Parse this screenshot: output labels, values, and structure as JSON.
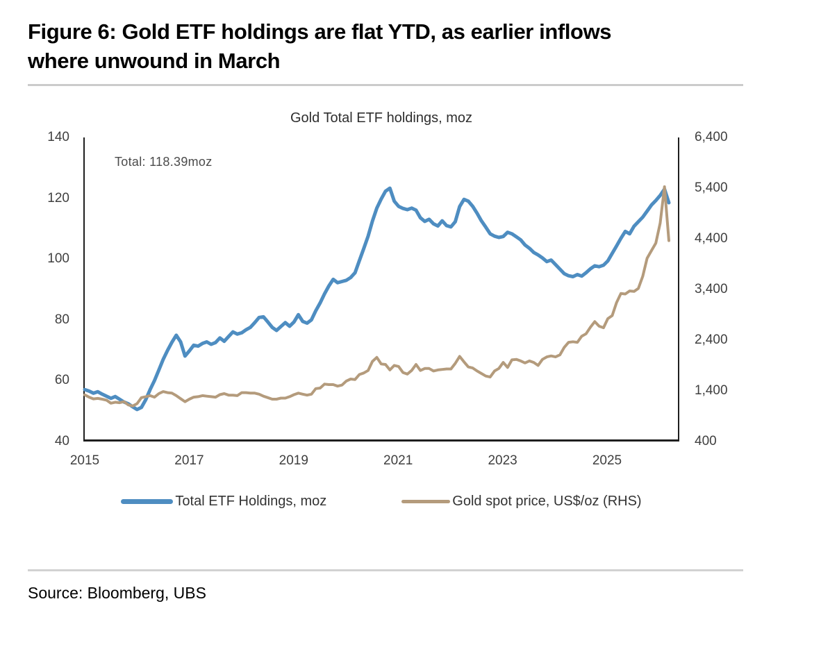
{
  "figure": {
    "title_line1": "Figure 6: Gold ETF holdings are flat YTD, as earlier inflows",
    "title_line2": "where unwound in March",
    "source": "Source: Bloomberg, UBS"
  },
  "colors": {
    "etf_blue": "#4e8dc1",
    "gold_tan": "#b49b7c",
    "axis": "#1e1e1e",
    "tick_text": "#3f3f3f"
  },
  "chart_data": {
    "type": "line",
    "title": "Gold Total ETF holdings, moz",
    "annotation": "Total: 118.39moz",
    "x_start_year": 2015,
    "points_per_year": 12,
    "x_tick_labels": [
      "2015",
      "2017",
      "2019",
      "2021",
      "2023",
      "2025"
    ],
    "left_axis": {
      "label": "Total ETF holdings, moz",
      "min": 40,
      "max": 140,
      "ticks": [
        "140",
        "120",
        "100",
        "80",
        "60",
        "40"
      ]
    },
    "right_axis": {
      "label": "Gold spot price, US$/oz",
      "min": 400,
      "max": 6400,
      "ticks": [
        "6,400",
        "5,400",
        "4,400",
        "3,400",
        "2,400",
        "1,400",
        "400"
      ]
    },
    "legend": [
      {
        "label": "Total ETF Holdings, moz",
        "color": "#4e8dc1",
        "swatch_w": 75,
        "swatch_h": 7
      },
      {
        "label": "Gold spot price, US$/oz (RHS)",
        "color": "#b49b7c",
        "swatch_w": 70,
        "swatch_h": 5
      }
    ],
    "series": [
      {
        "name": "Total ETF Holdings, moz",
        "axis": "left",
        "color": "#4e8dc1",
        "width": 5,
        "values": [
          56.5,
          56.0,
          55.3,
          55.8,
          55.0,
          54.3,
          53.6,
          54.2,
          53.3,
          52.4,
          51.8,
          50.8,
          49.9,
          50.6,
          53.2,
          56.5,
          59.5,
          63.0,
          66.5,
          69.5,
          72.2,
          74.5,
          72.3,
          67.6,
          69.3,
          71.2,
          70.9,
          71.8,
          72.3,
          71.5,
          72.1,
          73.6,
          72.5,
          74.1,
          75.6,
          74.9,
          75.3,
          76.3,
          77.1,
          78.7,
          80.4,
          80.6,
          78.9,
          77.1,
          76.1,
          77.4,
          78.7,
          77.5,
          78.9,
          81.3,
          79.1,
          78.5,
          79.6,
          82.6,
          85.2,
          88.2,
          90.8,
          93.0,
          91.9,
          92.3,
          92.7,
          93.6,
          95.2,
          99.2,
          103.2,
          107.3,
          112.3,
          116.6,
          119.6,
          122.2,
          123.2,
          118.9,
          117.2,
          116.5,
          116.1,
          116.6,
          115.9,
          113.4,
          112.2,
          112.9,
          111.4,
          110.7,
          112.4,
          110.8,
          110.4,
          112.1,
          117.1,
          119.5,
          118.9,
          117.2,
          114.9,
          112.4,
          110.3,
          108.1,
          107.3,
          106.9,
          107.2,
          108.6,
          108.1,
          107.1,
          106.1,
          104.4,
          103.3,
          101.9,
          101.1,
          100.1,
          98.9,
          99.4,
          97.9,
          96.4,
          94.9,
          94.2,
          93.9,
          94.6,
          94.1,
          95.2,
          96.5,
          97.5,
          97.2,
          97.7,
          99.1,
          101.6,
          104.1,
          106.6,
          108.9,
          108.1,
          110.6,
          112.1,
          113.6,
          115.6,
          117.6,
          119.1,
          120.8,
          122.9,
          118.4
        ]
      },
      {
        "name": "Gold spot price, US$/oz (RHS)",
        "axis": "right",
        "color": "#b49b7c",
        "width": 4,
        "values": [
          1285,
          1240,
          1205,
          1215,
          1200,
          1180,
          1120,
          1140,
          1130,
          1150,
          1085,
          1065,
          1110,
          1230,
          1250,
          1270,
          1240,
          1310,
          1350,
          1330,
          1320,
          1270,
          1210,
          1150,
          1200,
          1240,
          1250,
          1270,
          1260,
          1250,
          1240,
          1290,
          1310,
          1280,
          1280,
          1270,
          1330,
          1330,
          1320,
          1320,
          1300,
          1260,
          1230,
          1200,
          1200,
          1220,
          1220,
          1250,
          1290,
          1320,
          1300,
          1280,
          1300,
          1410,
          1420,
          1500,
          1490,
          1490,
          1460,
          1480,
          1560,
          1600,
          1590,
          1690,
          1720,
          1770,
          1950,
          2030,
          1900,
          1890,
          1780,
          1870,
          1850,
          1730,
          1700,
          1770,
          1890,
          1770,
          1810,
          1810,
          1760,
          1780,
          1790,
          1800,
          1800,
          1910,
          2050,
          1940,
          1840,
          1820,
          1760,
          1710,
          1660,
          1640,
          1760,
          1810,
          1930,
          1830,
          1980,
          1990,
          1960,
          1920,
          1960,
          1930,
          1870,
          1990,
          2040,
          2060,
          2040,
          2080,
          2230,
          2330,
          2340,
          2330,
          2450,
          2500,
          2630,
          2740,
          2650,
          2620,
          2800,
          2860,
          3120,
          3300,
          3290,
          3350,
          3340,
          3400,
          3640,
          4000,
          4150,
          4300,
          4700,
          5420,
          4350
        ]
      }
    ]
  }
}
